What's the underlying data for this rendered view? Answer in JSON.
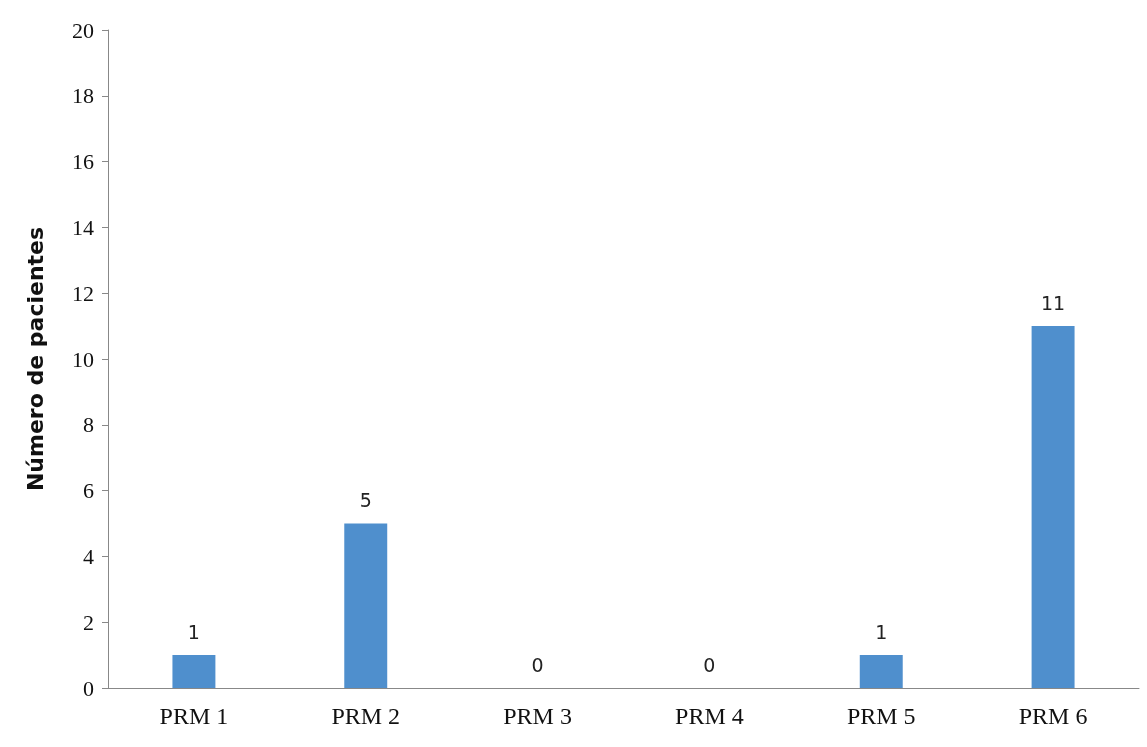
{
  "chart_data": {
    "type": "bar",
    "ylabel": "Número de pacientes",
    "categories": [
      "PRM 1",
      "PRM 2",
      "PRM 3",
      "PRM 4",
      "PRM 5",
      "PRM 6"
    ],
    "values": [
      1,
      5,
      0,
      0,
      1,
      11
    ],
    "color": "#4f8fcd",
    "ylim": [
      0,
      20
    ],
    "yticks": [
      0,
      2,
      4,
      6,
      8,
      10,
      12,
      14,
      16,
      18,
      20
    ],
    "grid": false,
    "data_labels": true
  }
}
